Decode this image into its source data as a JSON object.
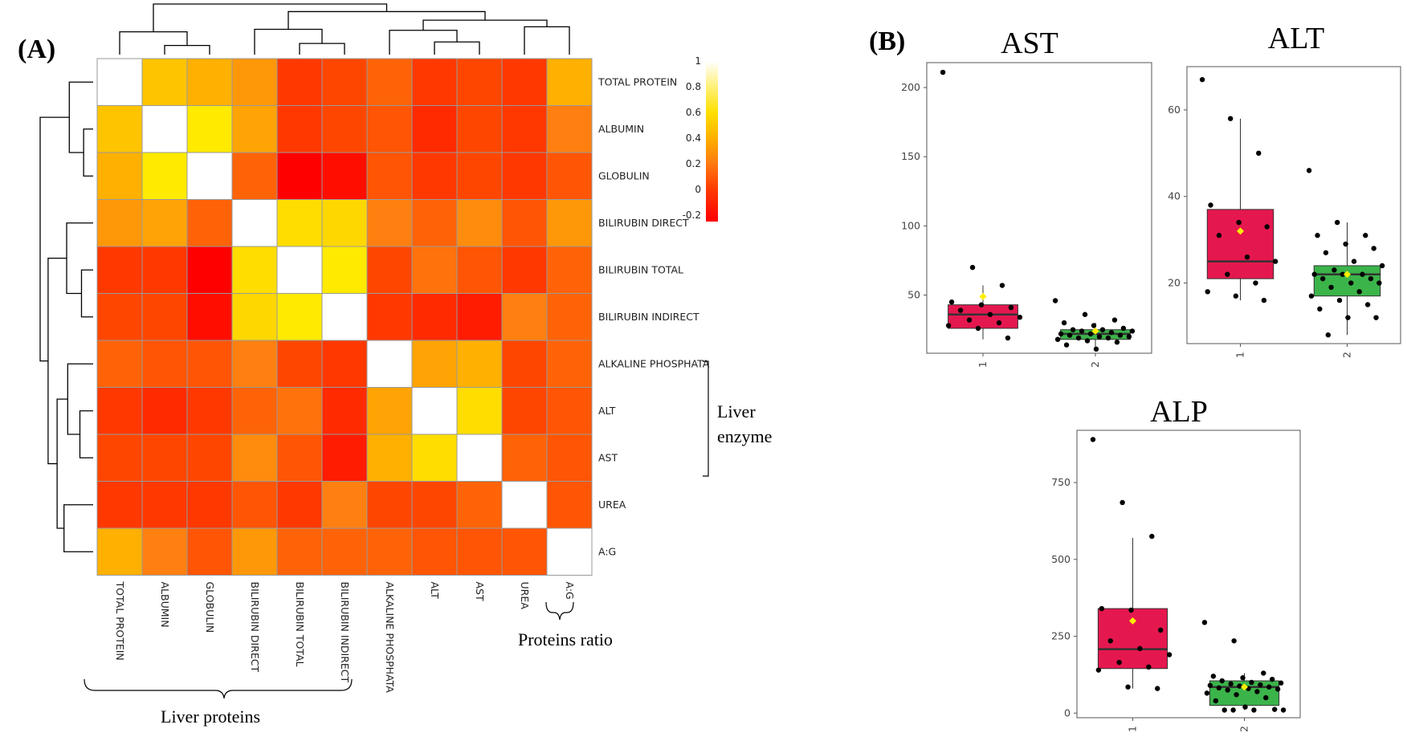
{
  "panels": {
    "a_label": "(A)",
    "b_label": "(B)"
  },
  "chart_data": [
    {
      "type": "heatmap",
      "title": "",
      "variables": [
        "TOTAL PROTEIN",
        "ALBUMIN",
        "GLOBULIN",
        "BILIRUBIN DIRECT",
        "BILIRUBIN TOTAL",
        "BILIRUBIN INDIRECT",
        "ALKALINE PHOSPHATA",
        "ALT",
        "AST",
        "UREA",
        "A:G"
      ],
      "values": [
        [
          1.0,
          0.5,
          0.4,
          0.3,
          -0.05,
          0.0,
          0.1,
          -0.05,
          0.0,
          -0.05,
          0.4
        ],
        [
          0.5,
          1.0,
          0.75,
          0.35,
          -0.05,
          0.0,
          0.05,
          -0.1,
          0.0,
          -0.05,
          0.2
        ],
        [
          0.4,
          0.75,
          1.0,
          0.1,
          -0.25,
          -0.2,
          0.05,
          -0.05,
          0.0,
          -0.05,
          0.05
        ],
        [
          0.3,
          0.35,
          0.1,
          1.0,
          0.65,
          0.6,
          0.2,
          0.1,
          0.25,
          0.05,
          0.3
        ],
        [
          -0.05,
          -0.05,
          -0.25,
          0.65,
          1.0,
          0.75,
          0.0,
          0.15,
          0.05,
          -0.05,
          0.1
        ],
        [
          0.0,
          0.0,
          -0.2,
          0.6,
          0.75,
          1.0,
          -0.05,
          -0.1,
          -0.15,
          0.2,
          0.1
        ],
        [
          0.1,
          0.05,
          0.05,
          0.2,
          0.0,
          -0.05,
          1.0,
          0.35,
          0.4,
          0.0,
          0.1
        ],
        [
          -0.05,
          -0.1,
          -0.05,
          0.1,
          0.15,
          -0.1,
          0.35,
          1.0,
          0.65,
          0.0,
          0.05
        ],
        [
          0.0,
          0.0,
          0.0,
          0.25,
          0.05,
          -0.15,
          0.4,
          0.65,
          1.0,
          0.1,
          0.05
        ],
        [
          -0.05,
          -0.05,
          -0.05,
          0.05,
          -0.05,
          0.2,
          0.0,
          0.0,
          0.1,
          1.0,
          0.05
        ],
        [
          0.4,
          0.2,
          0.05,
          0.3,
          0.1,
          0.1,
          0.1,
          0.05,
          0.05,
          0.05,
          1.0
        ]
      ],
      "color_scale": {
        "min": -0.25,
        "max": 1,
        "ticks": [
          "1",
          "0.8",
          "0.6",
          "0.4",
          "0.2",
          "0",
          "-0.2"
        ],
        "colors": [
          "#ff0000",
          "#ff6a00",
          "#ffe200",
          "#ffffff"
        ]
      },
      "annotations": {
        "liver_enzyme": [
          "Liver",
          "enzyme"
        ],
        "proteins_ratio": "Proteins ratio",
        "liver_proteins": "Liver proteins"
      }
    },
    {
      "type": "box",
      "title": "AST",
      "categories": [
        "1",
        "2"
      ],
      "ylim": [
        8,
        218
      ],
      "yticks": [
        50,
        100,
        150,
        200
      ],
      "groups": [
        {
          "name": "1",
          "color": "#e5174f",
          "q1": 26,
          "median": 36,
          "q3": 43,
          "whisker_low": 18,
          "whisker_high": 57,
          "mean": 49,
          "points": [
            211,
            70,
            57,
            45,
            43,
            41,
            39,
            36,
            34,
            32,
            30,
            28,
            26,
            19
          ]
        },
        {
          "name": "2",
          "color": "#3bb44a",
          "q1": 18,
          "median": 22,
          "q3": 25,
          "whisker_low": 11,
          "whisker_high": 30,
          "mean": 24,
          "points": [
            46,
            36,
            32,
            30,
            28,
            26,
            25,
            25,
            24,
            24,
            23,
            22,
            22,
            21,
            21,
            20,
            20,
            19,
            19,
            18,
            17,
            16,
            14,
            11
          ]
        }
      ]
    },
    {
      "type": "box",
      "title": "ALT",
      "categories": [
        "1",
        "2"
      ],
      "ylim": [
        6,
        70
      ],
      "yticks": [
        20,
        40,
        60
      ],
      "groups": [
        {
          "name": "1",
          "color": "#e5174f",
          "q1": 21,
          "median": 25,
          "q3": 37,
          "whisker_low": 16,
          "whisker_high": 58,
          "mean": 32,
          "points": [
            67,
            58,
            50,
            38,
            34,
            33,
            31,
            26,
            25,
            22,
            20,
            18,
            17,
            16
          ]
        },
        {
          "name": "2",
          "color": "#3bb44a",
          "q1": 17,
          "median": 22,
          "q3": 24,
          "whisker_low": 8,
          "whisker_high": 34,
          "mean": 22,
          "points": [
            46,
            34,
            31,
            31,
            29,
            28,
            27,
            25,
            24,
            23,
            22,
            22,
            22,
            21,
            21,
            20,
            20,
            19,
            18,
            17,
            16,
            15,
            14,
            12,
            12,
            8
          ]
        }
      ]
    },
    {
      "type": "box",
      "title": "ALP",
      "categories": [
        "1",
        "2"
      ],
      "ylim": [
        -15,
        920
      ],
      "yticks": [
        0,
        250,
        500,
        750
      ],
      "groups": [
        {
          "name": "1",
          "color": "#e5174f",
          "q1": 145,
          "median": 208,
          "q3": 340,
          "whisker_low": 80,
          "whisker_high": 570,
          "mean": 300,
          "points": [
            890,
            685,
            575,
            340,
            335,
            270,
            235,
            210,
            190,
            165,
            150,
            140,
            85,
            80
          ]
        },
        {
          "name": "2",
          "color": "#3bb44a",
          "q1": 25,
          "median": 85,
          "q3": 105,
          "whisker_low": 10,
          "whisker_high": 130,
          "mean": 85,
          "points": [
            295,
            235,
            130,
            120,
            115,
            110,
            105,
            100,
            98,
            95,
            92,
            90,
            88,
            85,
            82,
            80,
            78,
            75,
            70,
            65,
            60,
            50,
            40,
            20,
            12,
            10,
            10,
            10,
            10
          ]
        }
      ]
    }
  ]
}
